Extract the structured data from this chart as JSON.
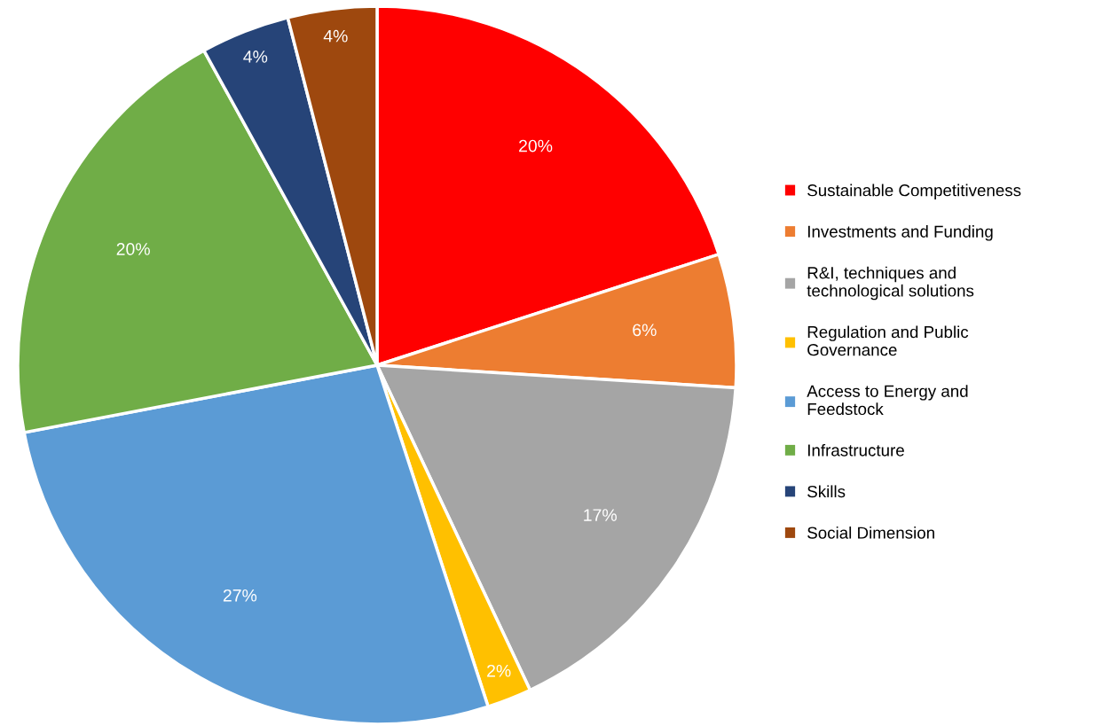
{
  "chart_data": {
    "type": "pie",
    "categories": [
      "Sustainable Competitiveness",
      "Investments and Funding",
      "R&I, techniques and\ntechnological solutions",
      "Regulation and Public\nGovernance",
      "Access to Energy and\nFeedstock",
      "Infrastructure",
      "Skills",
      "Social Dimension"
    ],
    "values": [
      20,
      6,
      17,
      2,
      27,
      20,
      4,
      4
    ],
    "colors": [
      "#ff0000",
      "#ed7d31",
      "#a5a5a5",
      "#ffc000",
      "#5b9bd5",
      "#70ad47",
      "#264478",
      "#9e480e"
    ],
    "value_labels": [
      "20%",
      "6%",
      "17%",
      "2%",
      "27%",
      "20%",
      "4%",
      "4%"
    ],
    "legend": "right"
  }
}
